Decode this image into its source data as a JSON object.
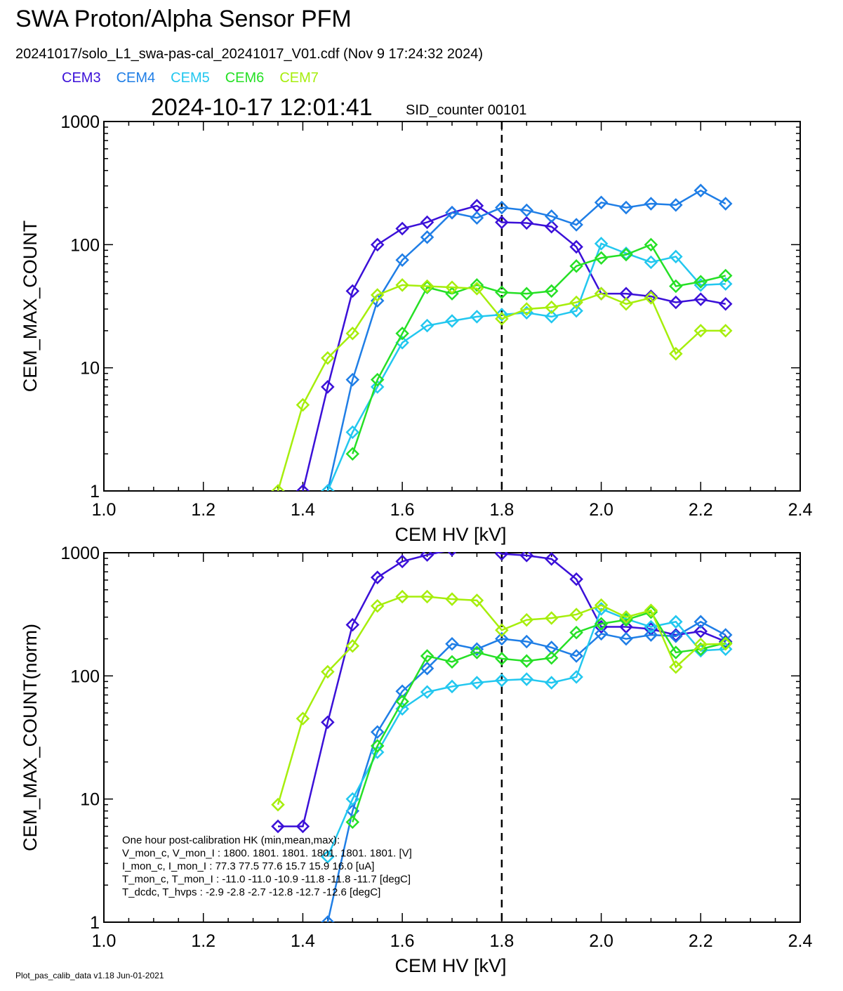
{
  "header": {
    "title": "SWA Proton/Alpha Sensor PFM",
    "subtitle": "20241017/solo_L1_swa-pas-cal_20241017_V01.cdf  (Nov  9 17:24:32 2024)",
    "timestamp": "2024-10-17 12:01:41",
    "sid": "SID_counter 00101",
    "footer": "Plot_pas_calib_data v1.18 Jun-01-2021"
  },
  "legend": [
    {
      "name": "CEM3",
      "color": "#3b10d8"
    },
    {
      "name": "CEM4",
      "color": "#1f7ee6"
    },
    {
      "name": "CEM5",
      "color": "#22c7ef"
    },
    {
      "name": "CEM6",
      "color": "#26e026"
    },
    {
      "name": "CEM7",
      "color": "#a6ee0c"
    }
  ],
  "hk_box": [
    "One hour post-calibration HK (min,mean,max):",
    "V_mon_c, V_mon_I :   1800.  1801.  1801.      1801.  1801.  1801.  [V]",
    "I_mon_c,  I_mon_I :     77.3   77.5   77.6        15.7   15.9   16.0  [uA]",
    "T_mon_c, T_mon_I :  -11.0  -11.0  -10.9        -11.8  -11.8  -11.7  [degC]",
    "T_dcdc,    T_hvps :      -2.9   -2.8   -2.7        -12.8  -12.7  -12.6  [degC]"
  ],
  "chart_data": [
    {
      "type": "line",
      "title": "",
      "xlabel": "CEM HV [kV]",
      "ylabel": "CEM_MAX_COUNT",
      "xlim": [
        1.0,
        2.4
      ],
      "ylim": [
        1,
        1000
      ],
      "yscale": "log",
      "xticks": [
        "1.0",
        "1.2",
        "1.4",
        "1.6",
        "1.8",
        "2.0",
        "2.2",
        "2.4"
      ],
      "yticks": [
        "1",
        "10",
        "100",
        "1000"
      ],
      "vline_x": 1.8,
      "x": [
        1.35,
        1.4,
        1.45,
        1.5,
        1.55,
        1.6,
        1.65,
        1.7,
        1.75,
        1.8,
        1.85,
        1.9,
        1.95,
        2.0,
        2.05,
        2.1,
        2.15,
        2.2,
        2.25
      ],
      "series": [
        {
          "name": "CEM3",
          "values": [
            null,
            1,
            7,
            42,
            100,
            135,
            152,
            182,
            207,
            152,
            150,
            140,
            96,
            40,
            40,
            38,
            34,
            36,
            33
          ]
        },
        {
          "name": "CEM4",
          "values": [
            null,
            null,
            1,
            8,
            35,
            75,
            115,
            182,
            165,
            200,
            190,
            170,
            145,
            220,
            200,
            215,
            210,
            275,
            215
          ]
        },
        {
          "name": "CEM5",
          "values": [
            null,
            null,
            1,
            3,
            7,
            16,
            22,
            24,
            26,
            27,
            28,
            26,
            29,
            102,
            85,
            72,
            80,
            47,
            48
          ]
        },
        {
          "name": "CEM6",
          "values": [
            null,
            null,
            null,
            2,
            8,
            19,
            45,
            40,
            47,
            41,
            40,
            42,
            67,
            78,
            83,
            100,
            46,
            50,
            56
          ]
        },
        {
          "name": "CEM7",
          "values": [
            1,
            5,
            12,
            19,
            39,
            47,
            46,
            45,
            44,
            25,
            30,
            31,
            34,
            40,
            33,
            37,
            13,
            20,
            20
          ]
        }
      ]
    },
    {
      "type": "line",
      "title": "",
      "xlabel": "CEM HV [kV]",
      "ylabel": "CEM_MAX_COUNT(norm)",
      "xlim": [
        1.0,
        2.4
      ],
      "ylim": [
        1,
        1000
      ],
      "yscale": "log",
      "xticks": [
        "1.0",
        "1.2",
        "1.4",
        "1.6",
        "1.8",
        "2.0",
        "2.2",
        "2.4"
      ],
      "yticks": [
        "1",
        "10",
        "100",
        "1000"
      ],
      "vline_x": 1.8,
      "x": [
        1.35,
        1.4,
        1.45,
        1.5,
        1.55,
        1.6,
        1.65,
        1.7,
        1.75,
        1.8,
        1.85,
        1.9,
        1.95,
        2.0,
        2.05,
        2.1,
        2.15,
        2.2,
        2.25
      ],
      "series": [
        {
          "name": "CEM3",
          "values": [
            6,
            6,
            42,
            260,
            630,
            850,
            960,
            1060,
            1180,
            980,
            950,
            890,
            610,
            250,
            250,
            240,
            215,
            230,
            190
          ]
        },
        {
          "name": "CEM4",
          "values": [
            null,
            null,
            1,
            8,
            35,
            75,
            115,
            182,
            165,
            200,
            190,
            170,
            145,
            220,
            200,
            215,
            210,
            275,
            215
          ]
        },
        {
          "name": "CEM5",
          "values": [
            null,
            null,
            3.4,
            10,
            24,
            54,
            74,
            82,
            88,
            92,
            94,
            88,
            98,
            350,
            290,
            250,
            275,
            160,
            165
          ]
        },
        {
          "name": "CEM6",
          "values": [
            null,
            null,
            null,
            6.5,
            27,
            62,
            145,
            130,
            155,
            138,
            132,
            140,
            225,
            265,
            285,
            330,
            155,
            165,
            185
          ]
        },
        {
          "name": "CEM7",
          "values": [
            9,
            45,
            108,
            175,
            370,
            440,
            440,
            420,
            410,
            235,
            285,
            295,
            315,
            375,
            300,
            340,
            118,
            180,
            182
          ]
        }
      ]
    }
  ]
}
